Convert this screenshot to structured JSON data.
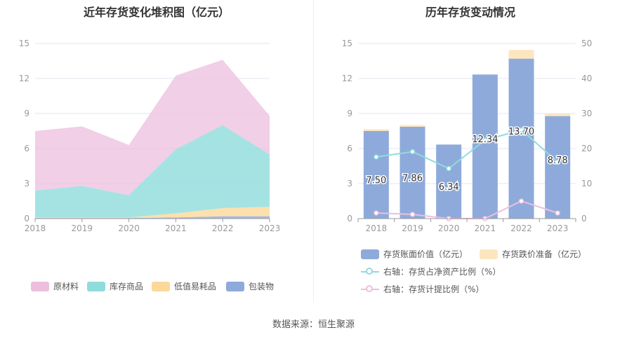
{
  "source_text": "数据来源：恒生聚源",
  "chart_data": [
    {
      "type": "area",
      "title": "近年存货变化堆积图（亿元）",
      "x": [
        "2018",
        "2019",
        "2020",
        "2021",
        "2022",
        "2023"
      ],
      "ylim": [
        0,
        15
      ],
      "yticks": [
        0,
        3,
        6,
        9,
        12,
        15
      ],
      "stacked": true,
      "series": [
        {
          "name": "包装物",
          "color": "#8eaadb",
          "values": [
            0.05,
            0.05,
            0.05,
            0.1,
            0.2,
            0.2
          ]
        },
        {
          "name": "低值易耗品",
          "color": "#fcd899",
          "values": [
            0.05,
            0.05,
            0.05,
            0.35,
            0.7,
            0.8
          ]
        },
        {
          "name": "库存商品",
          "color": "#8fdcdc",
          "values": [
            2.3,
            2.7,
            1.9,
            5.5,
            7.1,
            4.5
          ]
        },
        {
          "name": "原材料",
          "color": "#ecbfde",
          "values": [
            5.1,
            5.1,
            4.3,
            6.3,
            5.6,
            3.3
          ]
        }
      ],
      "legend_position": "bottom"
    },
    {
      "type": "bar",
      "title": "历年存货变动情况",
      "x": [
        "2018",
        "2019",
        "2020",
        "2021",
        "2022",
        "2023"
      ],
      "ylim": [
        0,
        15
      ],
      "yticks": [
        0,
        3,
        6,
        9,
        12,
        15
      ],
      "y2lim": [
        0,
        50
      ],
      "y2ticks": [
        0,
        10,
        20,
        30,
        40,
        50
      ],
      "series": [
        {
          "name": "存货账面价值（亿元）",
          "color": "#8eaadb",
          "type": "bar",
          "values": [
            7.5,
            7.86,
            6.34,
            12.34,
            13.7,
            8.78
          ],
          "labels": [
            "7.50",
            "7.86",
            "6.34",
            "12.34",
            "13.70",
            "8.78"
          ]
        },
        {
          "name": "存货跌价准备（亿元）",
          "color": "#fde6bf",
          "type": "bar",
          "stacked": true,
          "values": [
            0.15,
            0.15,
            0.0,
            0.0,
            0.75,
            0.2
          ]
        },
        {
          "name": "右轴：存货占净资产比例（%）",
          "color": "#8fdcdc",
          "type": "line",
          "axis": "right",
          "values": [
            17.6,
            19.1,
            14.3,
            22.4,
            25.3,
            16.2
          ]
        },
        {
          "name": "右轴：存货计提比例（%）",
          "color": "#ecbfde",
          "type": "line",
          "axis": "right",
          "values": [
            1.6,
            1.2,
            0.0,
            0.0,
            5.0,
            1.6
          ]
        }
      ],
      "legend_position": "bottom"
    }
  ]
}
